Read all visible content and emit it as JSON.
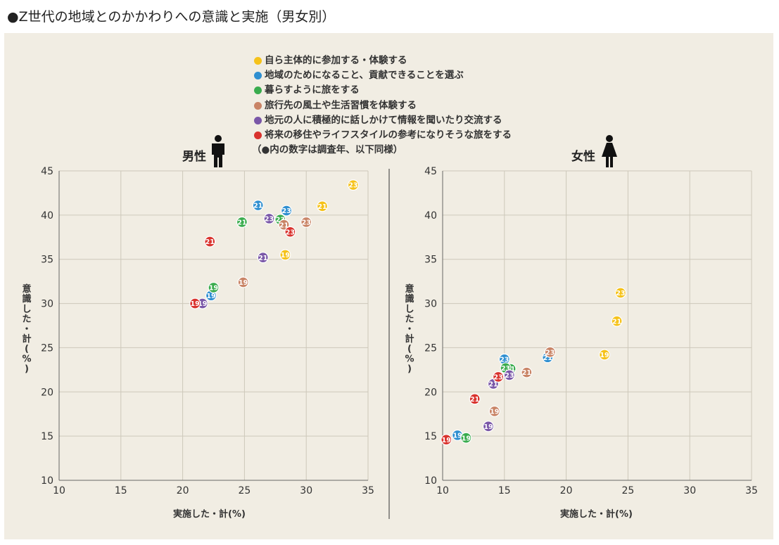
{
  "title": "●Z世代の地域とのかかわりへの意識と実施（男女別）",
  "legend": {
    "items": [
      {
        "label": "自ら主体的に参加する・体験する",
        "color": "#f5c21a"
      },
      {
        "label": "地域のためになること、貢献できることを選ぶ",
        "color": "#2f8fd0"
      },
      {
        "label": "暮らすように旅をする",
        "color": "#3aac4e"
      },
      {
        "label": "旅行先の風土や生活習慣を体験する",
        "color": "#c98466"
      },
      {
        "label": "地元の人に積極的に話しかけて情報を聞いたり交流する",
        "color": "#7a57a8"
      },
      {
        "label": "将来の移住やライフスタイルの参考になりそうな旅をする",
        "color": "#d9332e"
      }
    ],
    "note": "（●内の数字は調査年、以下同様）"
  },
  "chart_data": [
    {
      "type": "scatter",
      "title": "男性",
      "xlabel": "実施した・計(%)",
      "ylabel": "意識した・計(%)",
      "xlim": [
        10,
        35
      ],
      "ylim": [
        10,
        45
      ],
      "xticks": [
        10,
        15,
        20,
        25,
        30,
        35
      ],
      "yticks": [
        10,
        15,
        20,
        25,
        30,
        35,
        40,
        45
      ],
      "series": [
        {
          "name": "自ら主体的に参加する・体験する",
          "points": [
            {
              "x": 28.3,
              "y": 35.5,
              "label": "19"
            },
            {
              "x": 31.3,
              "y": 41.0,
              "label": "21"
            },
            {
              "x": 33.8,
              "y": 43.4,
              "label": "23"
            }
          ]
        },
        {
          "name": "地域のためになること、貢献できることを選ぶ",
          "points": [
            {
              "x": 22.3,
              "y": 30.9,
              "label": "19"
            },
            {
              "x": 26.1,
              "y": 41.1,
              "label": "21"
            },
            {
              "x": 28.4,
              "y": 40.5,
              "label": "23"
            }
          ]
        },
        {
          "name": "暮らすように旅をする",
          "points": [
            {
              "x": 22.5,
              "y": 31.8,
              "label": "19"
            },
            {
              "x": 24.8,
              "y": 39.2,
              "label": "21"
            },
            {
              "x": 27.9,
              "y": 39.5,
              "label": "23"
            }
          ]
        },
        {
          "name": "旅行先の風土や生活習慣を体験する",
          "points": [
            {
              "x": 24.9,
              "y": 32.4,
              "label": "19"
            },
            {
              "x": 28.2,
              "y": 38.9,
              "label": "21"
            },
            {
              "x": 30.0,
              "y": 39.2,
              "label": "23"
            }
          ]
        },
        {
          "name": "地元の人に積極的に話しかけて情報を聞いたり交流する",
          "points": [
            {
              "x": 21.6,
              "y": 30.0,
              "label": "19"
            },
            {
              "x": 26.5,
              "y": 35.2,
              "label": "21"
            },
            {
              "x": 27.0,
              "y": 39.6,
              "label": "23"
            }
          ]
        },
        {
          "name": "将来の移住やライフスタイルの参考になりそうな旅をする",
          "points": [
            {
              "x": 21.0,
              "y": 30.0,
              "label": "19"
            },
            {
              "x": 22.2,
              "y": 37.0,
              "label": "21"
            },
            {
              "x": 28.7,
              "y": 38.1,
              "label": "23"
            }
          ]
        }
      ]
    },
    {
      "type": "scatter",
      "title": "女性",
      "xlabel": "実施した・計(%)",
      "ylabel": "意識した・計(%)",
      "xlim": [
        10,
        35
      ],
      "ylim": [
        10,
        45
      ],
      "xticks": [
        10,
        15,
        20,
        25,
        30,
        35
      ],
      "yticks": [
        10,
        15,
        20,
        25,
        30,
        35,
        40,
        45
      ],
      "series": [
        {
          "name": "自ら主体的に参加する・体験する",
          "points": [
            {
              "x": 23.1,
              "y": 24.2,
              "label": "19"
            },
            {
              "x": 24.1,
              "y": 28.0,
              "label": "21"
            },
            {
              "x": 24.4,
              "y": 31.2,
              "label": "23"
            }
          ]
        },
        {
          "name": "地域のためになること、貢献できることを選ぶ",
          "points": [
            {
              "x": 11.2,
              "y": 15.1,
              "label": "19"
            },
            {
              "x": 18.5,
              "y": 23.9,
              "label": "21"
            },
            {
              "x": 15.0,
              "y": 23.7,
              "label": "23"
            }
          ]
        },
        {
          "name": "暮らすように旅をする",
          "points": [
            {
              "x": 11.9,
              "y": 14.8,
              "label": "19"
            },
            {
              "x": 15.5,
              "y": 22.6,
              "label": "21"
            },
            {
              "x": 15.1,
              "y": 22.7,
              "label": "23"
            }
          ]
        },
        {
          "name": "旅行先の風土や生活習慣を体験する",
          "points": [
            {
              "x": 14.2,
              "y": 17.8,
              "label": "19"
            },
            {
              "x": 16.8,
              "y": 22.2,
              "label": "21"
            },
            {
              "x": 18.7,
              "y": 24.5,
              "label": "23"
            }
          ]
        },
        {
          "name": "地元の人に積極的に話しかけて情報を聞いたり交流する",
          "points": [
            {
              "x": 13.7,
              "y": 16.1,
              "label": "19"
            },
            {
              "x": 14.1,
              "y": 20.9,
              "label": "21"
            },
            {
              "x": 15.4,
              "y": 21.9,
              "label": "23"
            }
          ]
        },
        {
          "name": "将来の移住やライフスタイルの参考になりそうな旅をする",
          "points": [
            {
              "x": 10.3,
              "y": 14.6,
              "label": "19"
            },
            {
              "x": 12.6,
              "y": 19.2,
              "label": "21"
            },
            {
              "x": 14.5,
              "y": 21.7,
              "label": "23"
            }
          ]
        }
      ]
    }
  ]
}
